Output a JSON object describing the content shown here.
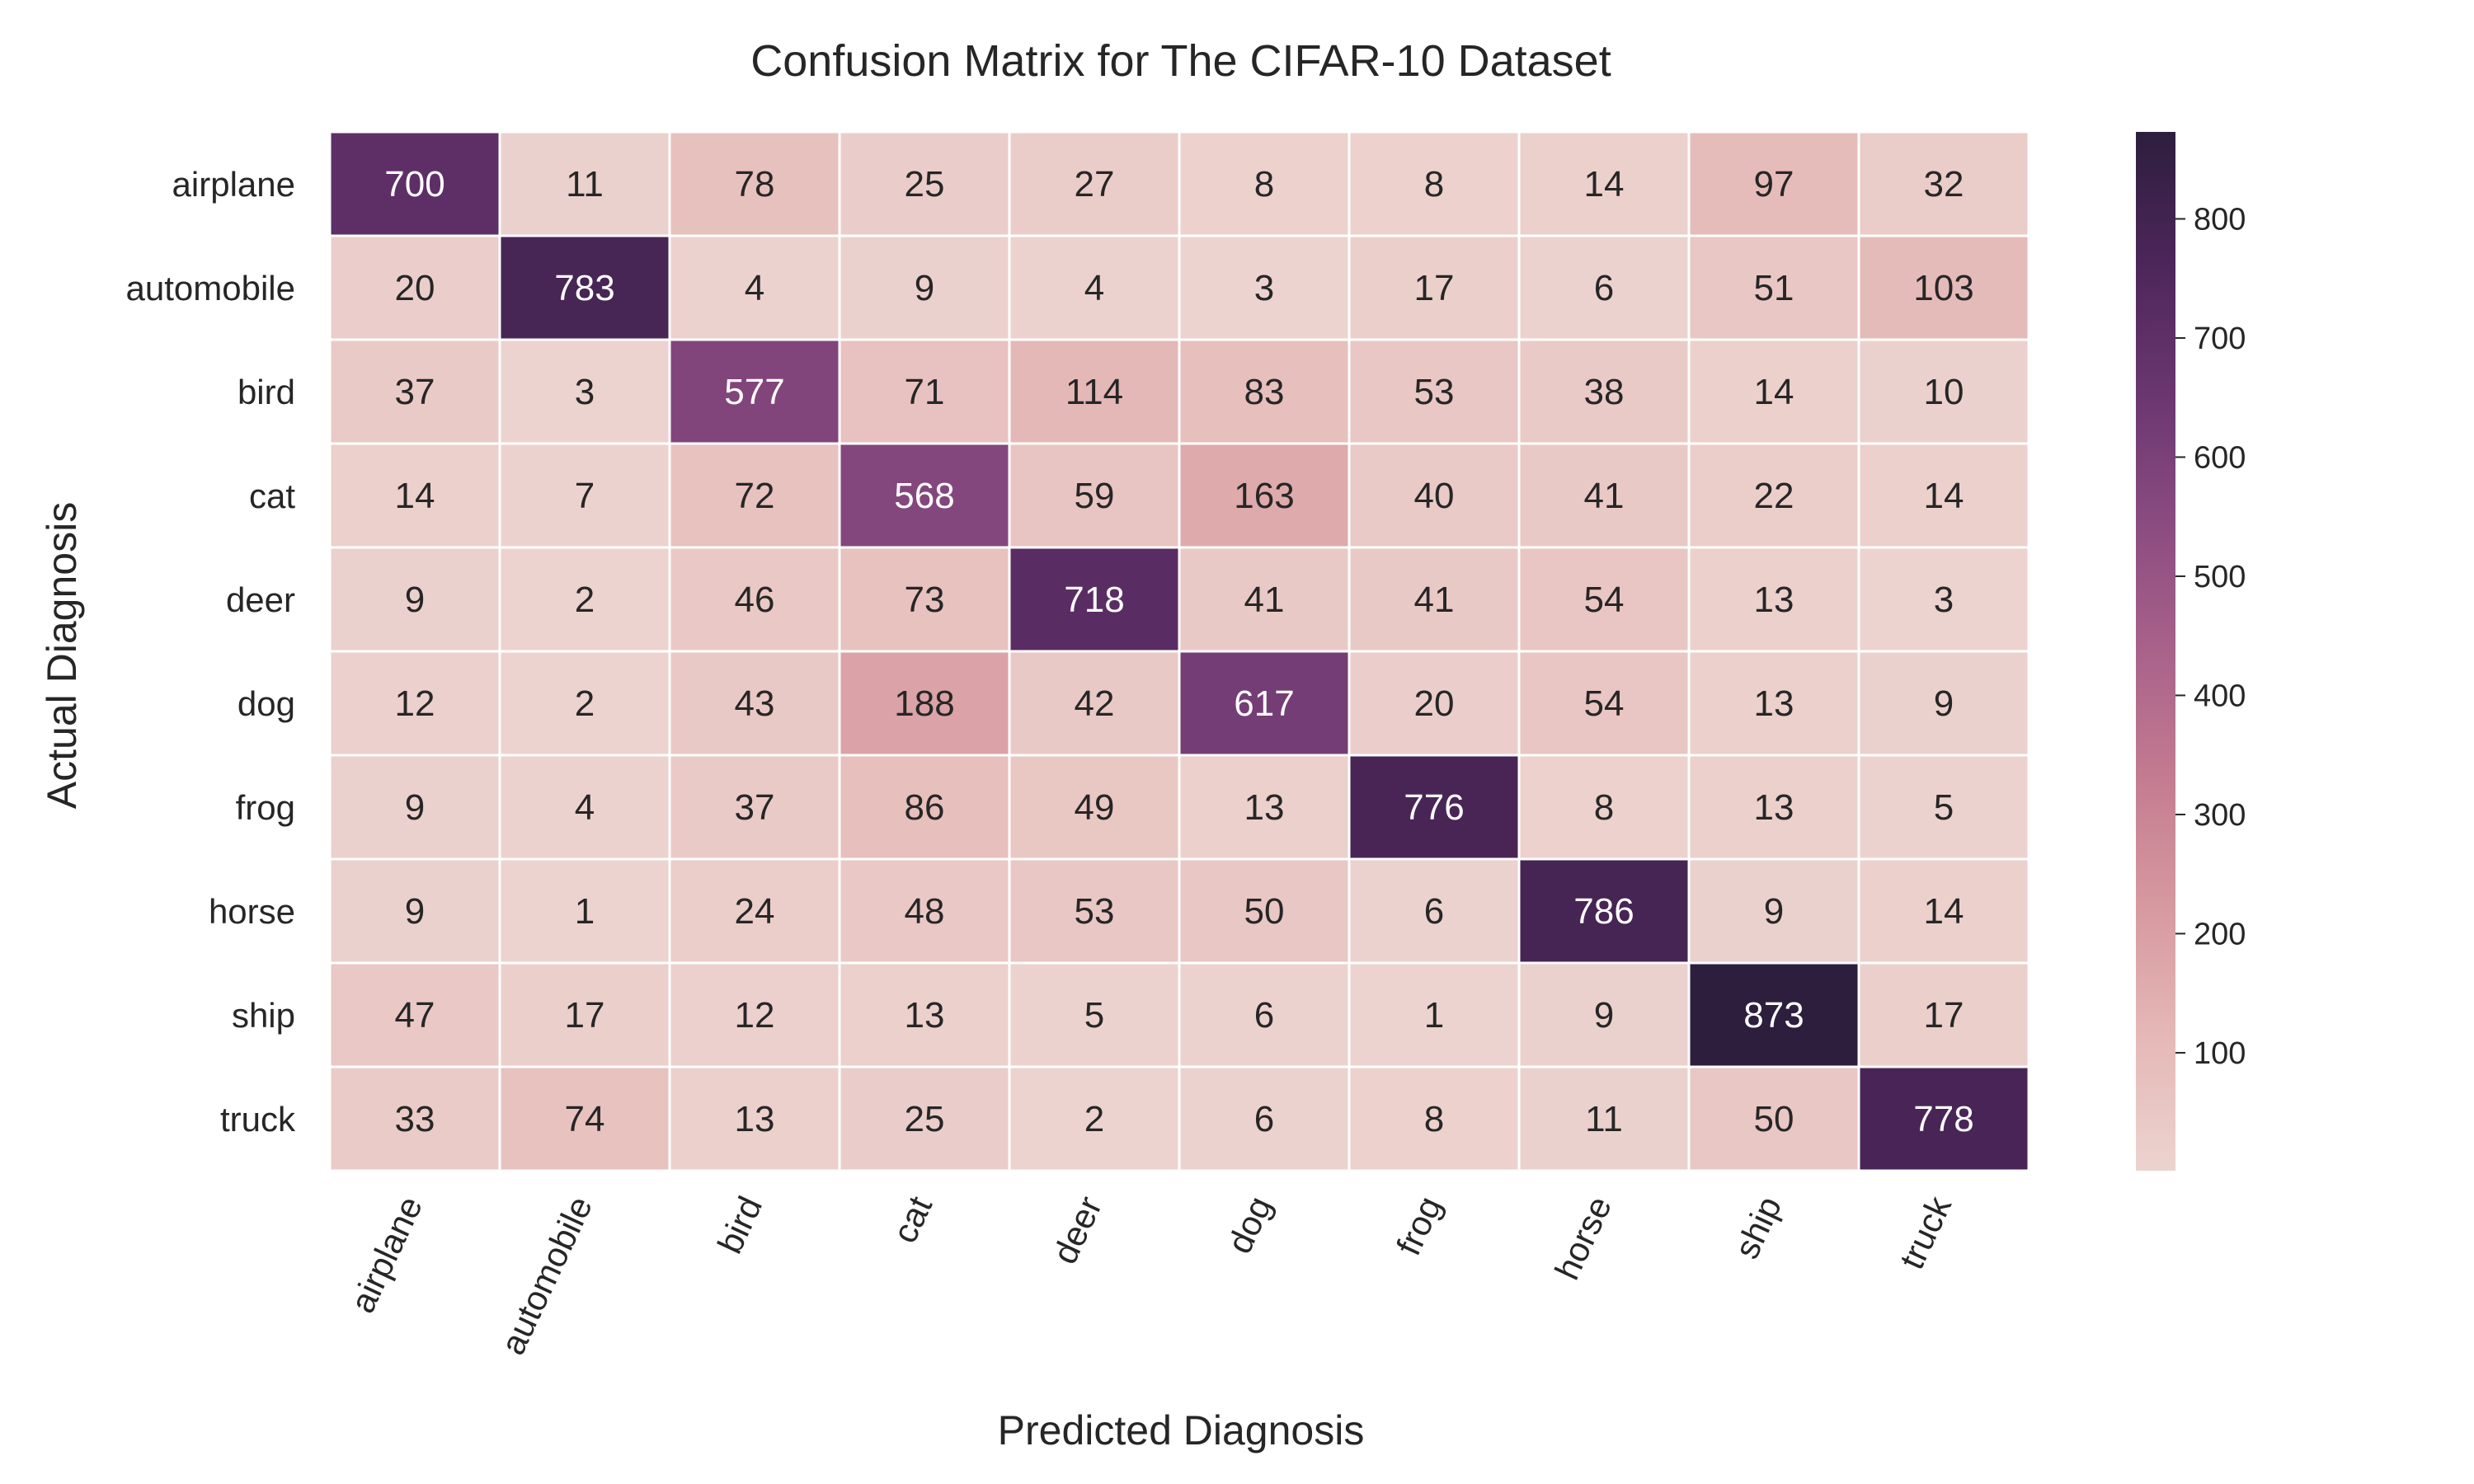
{
  "chart_data": {
    "type": "heatmap",
    "title": "Confusion Matrix for The CIFAR-10 Dataset",
    "xlabel": "Predicted Diagnosis",
    "ylabel": "Actual Diagnosis",
    "x_categories": [
      "airplane",
      "automobile",
      "bird",
      "cat",
      "deer",
      "dog",
      "frog",
      "horse",
      "ship",
      "truck"
    ],
    "y_categories": [
      "airplane",
      "automobile",
      "bird",
      "cat",
      "deer",
      "dog",
      "frog",
      "horse",
      "ship",
      "truck"
    ],
    "values": [
      [
        700,
        11,
        78,
        25,
        27,
        8,
        8,
        14,
        97,
        32
      ],
      [
        20,
        783,
        4,
        9,
        4,
        3,
        17,
        6,
        51,
        103
      ],
      [
        37,
        3,
        577,
        71,
        114,
        83,
        53,
        38,
        14,
        10
      ],
      [
        14,
        7,
        72,
        568,
        59,
        163,
        40,
        41,
        22,
        14
      ],
      [
        9,
        2,
        46,
        73,
        718,
        41,
        41,
        54,
        13,
        3
      ],
      [
        12,
        2,
        43,
        188,
        42,
        617,
        20,
        54,
        13,
        9
      ],
      [
        9,
        4,
        37,
        86,
        49,
        13,
        776,
        8,
        13,
        5
      ],
      [
        9,
        1,
        24,
        48,
        53,
        50,
        6,
        786,
        9,
        14
      ],
      [
        47,
        17,
        12,
        13,
        5,
        6,
        1,
        9,
        873,
        17
      ],
      [
        33,
        74,
        13,
        25,
        2,
        6,
        8,
        11,
        50,
        778
      ]
    ],
    "colorbar": {
      "ticks": [
        100,
        200,
        300,
        400,
        500,
        600,
        700,
        800
      ],
      "range": [
        1,
        873
      ],
      "colors": [
        "#ecd3cf",
        "#e5b9b7",
        "#d79aa0",
        "#c47c91",
        "#a9628a",
        "#8a4b80",
        "#6a3670",
        "#4c2659",
        "#2d1e3e"
      ]
    },
    "x_tick_rotation": -65,
    "legend": "colorbar-right"
  }
}
